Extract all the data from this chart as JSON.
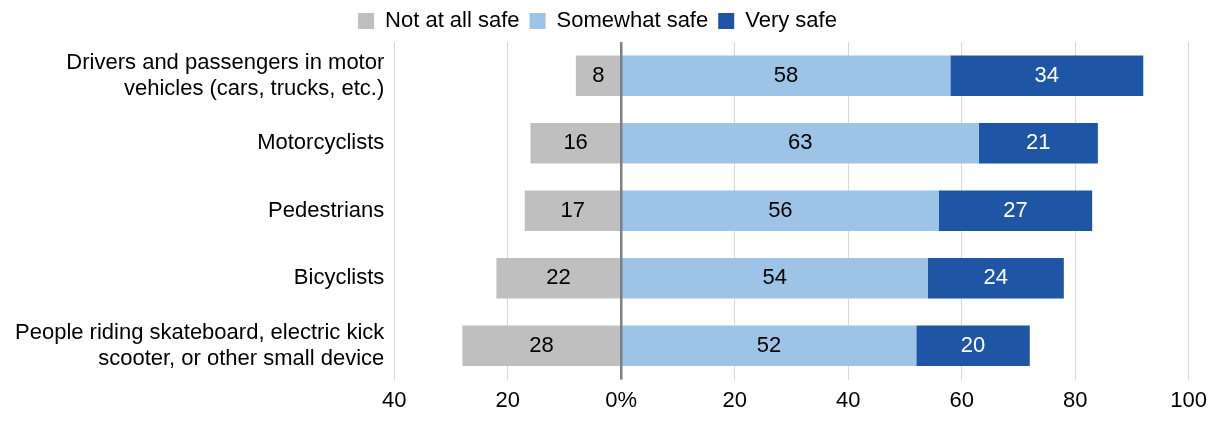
{
  "chart_data": {
    "type": "bar",
    "orientation": "horizontal",
    "categories": [
      "Drivers and passengers in motor vehicles (cars, trucks, etc.)",
      "Motorcyclists",
      "Pedestrians",
      "Bicyclists",
      "People riding skateboard, electric kick scooter, or other small device"
    ],
    "series": [
      {
        "name": "Not at all safe",
        "color": "#bfbfbf",
        "values": [
          8,
          16,
          17,
          22,
          28
        ],
        "base": [
          -8,
          -16,
          -17,
          -22,
          -28
        ]
      },
      {
        "name": "Somewhat safe",
        "color": "#9dc3e6",
        "values": [
          58,
          63,
          56,
          54,
          52
        ],
        "base": [
          0,
          0,
          0,
          0,
          0
        ]
      },
      {
        "name": "Very safe",
        "color": "#1f55a5",
        "values": [
          34,
          21,
          27,
          24,
          20
        ],
        "base": [
          58,
          63,
          56,
          54,
          52
        ]
      }
    ],
    "data_labels": true,
    "xlim": [
      -40,
      100
    ],
    "xticks": [
      {
        "value": -40,
        "label": "40"
      },
      {
        "value": -20,
        "label": "20"
      },
      {
        "value": 0,
        "label": "0%"
      },
      20,
      40,
      60,
      80,
      100
    ],
    "ref_lines": [
      {
        "axis": "x",
        "value": 0,
        "color": "#808080"
      }
    ],
    "grid": "x",
    "legend": "top"
  }
}
